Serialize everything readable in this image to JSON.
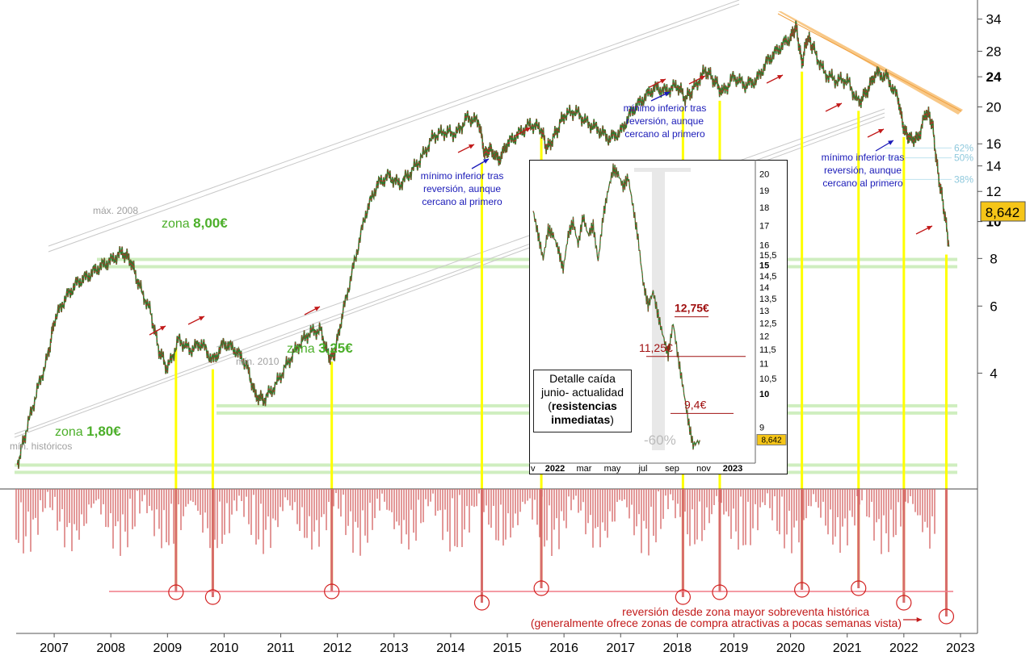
{
  "chart_data": [
    {
      "type": "line",
      "subtype": "price-with-oscillator",
      "y_scale": "log",
      "ylim": [
        2.2,
        36
      ],
      "xlim": [
        2006.3,
        2023.3
      ],
      "y_ticks": [
        4,
        6,
        8,
        10,
        12,
        14,
        16,
        20,
        24,
        28,
        34
      ],
      "y_ticks_bold": [
        10,
        24
      ],
      "x_ticks": [
        "2007",
        "2008",
        "2009",
        "2010",
        "2011",
        "2012",
        "2013",
        "2014",
        "2015",
        "2016",
        "2017",
        "2018",
        "2019",
        "2020",
        "2021",
        "2022",
        "2023"
      ],
      "x_ticks_values": [
        2007,
        2008,
        2009,
        2010,
        2011,
        2012,
        2013,
        2014,
        2015,
        2016,
        2017,
        2018,
        2019,
        2020,
        2021,
        2022,
        2023
      ],
      "last_price": "8,642",
      "price": {
        "x": [
          2006.35,
          2006.5,
          2006.7,
          2006.9,
          2007.0,
          2007.2,
          2007.4,
          2007.6,
          2007.8,
          2008.0,
          2008.2,
          2008.35,
          2008.5,
          2008.7,
          2008.85,
          2009.0,
          2009.2,
          2009.4,
          2009.6,
          2009.8,
          2010.0,
          2010.2,
          2010.4,
          2010.55,
          2010.7,
          2010.9,
          2011.1,
          2011.3,
          2011.5,
          2011.7,
          2011.85,
          2011.95,
          2012.1,
          2012.3,
          2012.5,
          2012.7,
          2012.9,
          2013.1,
          2013.3,
          2013.5,
          2013.7,
          2013.9,
          2014.1,
          2014.3,
          2014.5,
          2014.6,
          2014.7,
          2014.85,
          2015.0,
          2015.2,
          2015.4,
          2015.6,
          2015.7,
          2015.85,
          2016.0,
          2016.2,
          2016.4,
          2016.6,
          2016.8,
          2017.0,
          2017.2,
          2017.4,
          2017.6,
          2017.8,
          2018.0,
          2018.15,
          2018.3,
          2018.5,
          2018.65,
          2018.8,
          2019.0,
          2019.2,
          2019.4,
          2019.6,
          2019.8,
          2020.0,
          2020.1,
          2020.2,
          2020.3,
          2020.4,
          2020.6,
          2020.8,
          2021.0,
          2021.2,
          2021.35,
          2021.5,
          2021.7,
          2021.9,
          2022.0,
          2022.1,
          2022.25,
          2022.4,
          2022.5,
          2022.6,
          2022.7,
          2022.8
        ],
        "y": [
          2.3,
          2.8,
          3.6,
          4.5,
          5.5,
          6.3,
          6.9,
          7.2,
          7.6,
          7.9,
          8.3,
          7.9,
          6.8,
          5.8,
          4.6,
          4.1,
          4.9,
          4.6,
          4.8,
          4.3,
          4.8,
          4.6,
          4.2,
          3.5,
          3.4,
          3.7,
          4.2,
          4.7,
          5.1,
          5.2,
          4.4,
          4.5,
          5.8,
          7.8,
          10.5,
          12.5,
          13.2,
          12.5,
          13.5,
          14.8,
          16.8,
          17.2,
          17.0,
          18.8,
          18.2,
          15.0,
          15.5,
          14.5,
          16.0,
          17.0,
          18.0,
          17.5,
          15.5,
          17.0,
          19.0,
          19.5,
          18.2,
          17.5,
          16.5,
          17.2,
          19.5,
          21.0,
          22.5,
          22.0,
          22.8,
          21.0,
          22.5,
          25.0,
          23.5,
          21.8,
          24.0,
          22.8,
          23.5,
          26.5,
          28.5,
          30.5,
          32.5,
          26.0,
          30.5,
          28.5,
          24.5,
          23.5,
          23.5,
          20.5,
          22.0,
          24.5,
          24.0,
          21.0,
          17.5,
          16.5,
          16.5,
          19.5,
          18.2,
          13.5,
          11.0,
          8.6
        ]
      },
      "oscillator": {
        "reversal_points_x": [
          2009.15,
          2009.8,
          2011.9,
          2014.55,
          2015.6,
          2018.1,
          2018.75,
          2020.2,
          2021.2,
          2022.0,
          2022.75
        ]
      },
      "annotations": {
        "zones": [
          {
            "label_prefix": "zona ",
            "label_value": "8,00€",
            "price": 7.8
          },
          {
            "label_prefix": "zona ",
            "label_value": "3,25€",
            "price": 3.22
          },
          {
            "label_prefix": "zona ",
            "label_value": "1,80€",
            "price": 2.25
          }
        ],
        "text_max2008": "máx. 2008",
        "text_min2010": "mín. 2010",
        "text_minhist": "mín. históricos",
        "fib_labels": [
          "62%",
          "50%",
          "38%"
        ],
        "fib_prices": [
          15.6,
          14.7,
          12.9
        ],
        "note_lines": [
          "mínimo inferior tras",
          "reversión, aunque",
          "cercano al primero"
        ],
        "reversal_note_1": "reversión desde zona mayor sobreventa histórica",
        "reversal_note_2": "(generalmente ofrece zonas de compra atractivas a pocas semanas vista)"
      }
    },
    {
      "type": "line",
      "subtype": "inset-detail",
      "y_scale": "log",
      "ylim": [
        8.2,
        20.5
      ],
      "y_ticks": [
        20,
        19,
        18,
        17,
        16,
        15.5,
        15,
        14.5,
        14,
        13.5,
        13,
        12.5,
        12,
        11.5,
        11,
        10.5,
        10,
        9
      ],
      "y_tick_labels": [
        "20",
        "19",
        "18",
        "17",
        "16",
        "15,5",
        "15",
        "14,5",
        "14",
        "13,5",
        "13",
        "12,5",
        "12",
        "11,5",
        "11",
        "10,5",
        "10",
        "9"
      ],
      "y_ticks_bold": [
        15,
        10
      ],
      "x_tick_labels": [
        "v",
        "2022",
        "mar",
        "may",
        "jul",
        "sep",
        "nov",
        "2023"
      ],
      "x_tick_bold": [
        "2022",
        "2023"
      ],
      "last_price": "8,642",
      "price": {
        "x": [
          0.0,
          0.03,
          0.06,
          0.09,
          0.12,
          0.15,
          0.18,
          0.21,
          0.24,
          0.27,
          0.3,
          0.33,
          0.36,
          0.39,
          0.42,
          0.45,
          0.48,
          0.51,
          0.54,
          0.57,
          0.6,
          0.63,
          0.66,
          0.69,
          0.72,
          0.75,
          0.78,
          0.81,
          0.84,
          0.87,
          0.9,
          0.93,
          0.96,
          1.0
        ],
        "y": [
          17.8,
          16.5,
          15.3,
          16.8,
          16.5,
          15.8,
          14.8,
          16.5,
          17.2,
          16.0,
          17.5,
          16.5,
          17.0,
          15.2,
          17.5,
          19.0,
          20.3,
          20.0,
          19.2,
          19.8,
          18.0,
          16.3,
          14.2,
          13.2,
          13.8,
          12.8,
          12.0,
          11.3,
          12.5,
          11.2,
          10.2,
          9.2,
          8.5,
          8.64
        ]
      },
      "resistances": [
        {
          "label": "12,75€",
          "price": 12.75,
          "bold": true
        },
        {
          "label": "11,25€",
          "price": 11.25,
          "bold": false
        },
        {
          "label": "9,4€",
          "price": 9.4,
          "bold": false
        }
      ],
      "drawdown_label": "-60%",
      "note": {
        "line1": "Detalle caída",
        "line2": "junio- actualidad",
        "line3": "resistencias",
        "line4": "inmediatas"
      }
    }
  ]
}
